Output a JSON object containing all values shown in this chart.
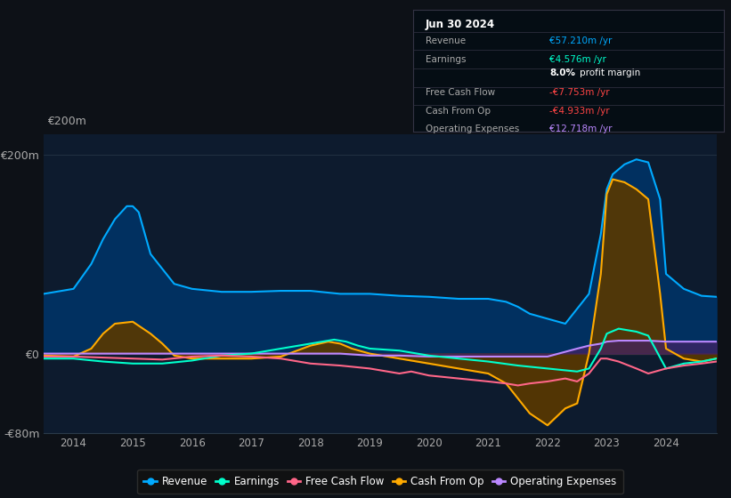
{
  "bg_color": "#0d1117",
  "plot_bg_color": "#0d1b2e",
  "ylim": [
    -80,
    220
  ],
  "xlim_start": 2013.5,
  "xlim_end": 2024.85,
  "yticks": [
    -80,
    0,
    200
  ],
  "ytick_labels": [
    "-€80m",
    "€0",
    "€200m"
  ],
  "xticks": [
    2014,
    2015,
    2016,
    2017,
    2018,
    2019,
    2020,
    2021,
    2022,
    2023,
    2024
  ],
  "grid_color": "#2a3a4a",
  "zero_line_color": "#888888",
  "legend_items": [
    {
      "label": "Revenue",
      "color": "#00aaff"
    },
    {
      "label": "Earnings",
      "color": "#00ffcc"
    },
    {
      "label": "Free Cash Flow",
      "color": "#ff6688"
    },
    {
      "label": "Cash From Op",
      "color": "#ffaa00"
    },
    {
      "label": "Operating Expenses",
      "color": "#bb88ff"
    }
  ],
  "info_box": {
    "title": "Jun 30 2024",
    "rows": [
      {
        "label": "Revenue",
        "value": "€57.210m /yr",
        "value_color": "#00aaff"
      },
      {
        "label": "Earnings",
        "value": "€4.576m /yr",
        "value_color": "#00ffcc"
      },
      {
        "label": "",
        "value": "8.0% profit margin",
        "value_color": "#ffffff"
      },
      {
        "label": "Free Cash Flow",
        "value": "-€7.753m /yr",
        "value_color": "#ff4444"
      },
      {
        "label": "Cash From Op",
        "value": "-€4.933m /yr",
        "value_color": "#ff4444"
      },
      {
        "label": "Operating Expenses",
        "value": "€12.718m /yr",
        "value_color": "#bb88ff"
      }
    ]
  },
  "revenue": {
    "x": [
      2013.5,
      2014.0,
      2014.3,
      2014.5,
      2014.7,
      2014.9,
      2015.0,
      2015.1,
      2015.3,
      2015.7,
      2016.0,
      2016.5,
      2017.0,
      2017.5,
      2018.0,
      2018.5,
      2019.0,
      2019.5,
      2020.0,
      2020.5,
      2021.0,
      2021.3,
      2021.5,
      2021.7,
      2022.0,
      2022.3,
      2022.7,
      2022.9,
      2023.0,
      2023.1,
      2023.3,
      2023.5,
      2023.7,
      2023.9,
      2024.0,
      2024.3,
      2024.6,
      2024.85
    ],
    "y": [
      60,
      65,
      90,
      115,
      135,
      148,
      148,
      142,
      100,
      70,
      65,
      62,
      62,
      63,
      63,
      60,
      60,
      58,
      57,
      55,
      55,
      52,
      47,
      40,
      35,
      30,
      60,
      120,
      165,
      180,
      190,
      195,
      192,
      155,
      80,
      65,
      58,
      57
    ],
    "color": "#00aaff",
    "fill_color": "#003366"
  },
  "earnings": {
    "x": [
      2013.5,
      2014.0,
      2014.5,
      2015.0,
      2015.5,
      2016.0,
      2016.5,
      2017.0,
      2017.5,
      2018.0,
      2018.2,
      2018.4,
      2018.6,
      2018.8,
      2019.0,
      2019.5,
      2020.0,
      2020.5,
      2021.0,
      2021.5,
      2022.0,
      2022.5,
      2022.7,
      2022.9,
      2023.0,
      2023.2,
      2023.5,
      2023.7,
      2024.0,
      2024.3,
      2024.6,
      2024.85
    ],
    "y": [
      -5,
      -5,
      -8,
      -10,
      -10,
      -7,
      -2,
      0,
      5,
      10,
      12,
      14,
      12,
      8,
      5,
      3,
      -2,
      -5,
      -8,
      -12,
      -15,
      -18,
      -15,
      5,
      20,
      25,
      22,
      18,
      -15,
      -10,
      -8,
      -5
    ],
    "color": "#00ffcc"
  },
  "free_cash_flow": {
    "x": [
      2013.5,
      2014.0,
      2014.5,
      2015.0,
      2015.5,
      2016.0,
      2016.5,
      2017.0,
      2017.5,
      2018.0,
      2018.5,
      2019.0,
      2019.3,
      2019.5,
      2019.7,
      2020.0,
      2020.5,
      2021.0,
      2021.3,
      2021.5,
      2021.7,
      2022.0,
      2022.3,
      2022.5,
      2022.7,
      2022.9,
      2023.0,
      2023.2,
      2023.5,
      2023.7,
      2024.0,
      2024.3,
      2024.6,
      2024.85
    ],
    "y": [
      -3,
      -3,
      -4,
      -5,
      -6,
      -3,
      -2,
      -3,
      -5,
      -10,
      -12,
      -15,
      -18,
      -20,
      -18,
      -22,
      -25,
      -28,
      -30,
      -32,
      -30,
      -28,
      -25,
      -28,
      -20,
      -5,
      -5,
      -8,
      -15,
      -20,
      -15,
      -12,
      -10,
      -8
    ],
    "color": "#ff6688"
  },
  "cash_from_op": {
    "x": [
      2013.5,
      2014.0,
      2014.3,
      2014.5,
      2014.7,
      2015.0,
      2015.3,
      2015.5,
      2015.7,
      2016.0,
      2016.5,
      2017.0,
      2017.5,
      2018.0,
      2018.3,
      2018.5,
      2018.7,
      2019.0,
      2019.5,
      2020.0,
      2020.5,
      2021.0,
      2021.3,
      2021.5,
      2021.7,
      2022.0,
      2022.3,
      2022.5,
      2022.7,
      2022.9,
      2023.0,
      2023.1,
      2023.3,
      2023.5,
      2023.7,
      2023.9,
      2024.0,
      2024.3,
      2024.6,
      2024.85
    ],
    "y": [
      -2,
      -3,
      5,
      20,
      30,
      32,
      20,
      10,
      -2,
      -5,
      -5,
      -5,
      -3,
      8,
      12,
      10,
      5,
      0,
      -5,
      -10,
      -15,
      -20,
      -30,
      -45,
      -60,
      -72,
      -55,
      -50,
      0,
      80,
      160,
      175,
      172,
      165,
      155,
      60,
      5,
      -5,
      -8,
      -5
    ],
    "color": "#ffaa00",
    "fill_color": "#5a3800"
  },
  "operating_expenses": {
    "x": [
      2013.5,
      2014.0,
      2014.5,
      2015.0,
      2015.5,
      2016.0,
      2016.5,
      2017.0,
      2017.5,
      2018.0,
      2018.5,
      2019.0,
      2019.3,
      2019.5,
      2020.0,
      2020.5,
      2021.0,
      2021.5,
      2022.0,
      2022.5,
      2022.7,
      2022.9,
      2023.0,
      2023.2,
      2023.5,
      2023.7,
      2024.0,
      2024.3,
      2024.6,
      2024.85
    ],
    "y": [
      0,
      0,
      0,
      0,
      0,
      0,
      0,
      0,
      0,
      0,
      0,
      -2,
      -2,
      -2,
      -3,
      -3,
      -3,
      -3,
      -3,
      5,
      8,
      10,
      12,
      13,
      13,
      13,
      12,
      12,
      12,
      12
    ],
    "color": "#bb88ff",
    "fill_color": "#442266"
  }
}
